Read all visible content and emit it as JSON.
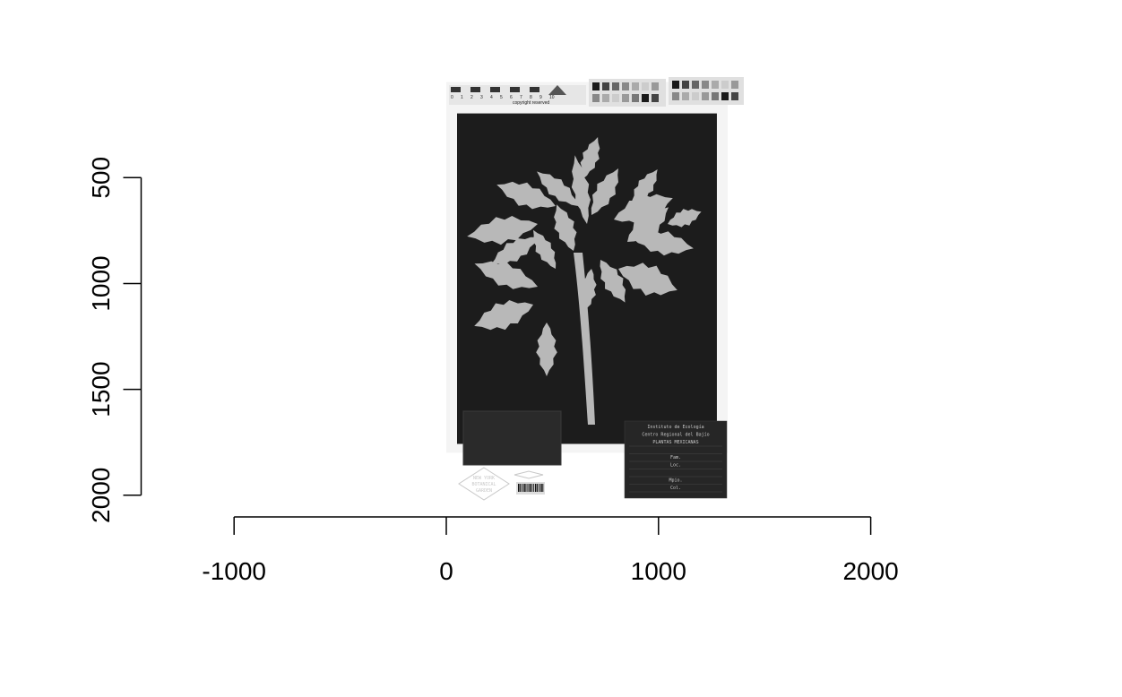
{
  "chart_data": {
    "type": "image",
    "title": "",
    "xlabel": "",
    "ylabel": "",
    "xlim": [
      -1000,
      2000
    ],
    "ylim": [
      2000,
      500
    ],
    "y_reversed": true,
    "x_ticks": [
      "-1000",
      "0",
      "1000",
      "2000"
    ],
    "y_ticks": [
      "500",
      "1000",
      "1500",
      "2000"
    ],
    "x_tick_values": [
      -1000,
      0,
      1000,
      2000
    ],
    "y_tick_values": [
      500,
      1000,
      1500,
      2000
    ],
    "grid": false,
    "legend": "none",
    "image": {
      "subject": "herbarium specimen",
      "colors": {
        "sheet": "#1c1c1c",
        "plant": "#b8b8b8",
        "background": "#ffffff",
        "label": "#262626"
      },
      "extent_x": [
        0,
        1330
      ],
      "extent_y": [
        1800,
        150
      ]
    }
  },
  "specimen": {
    "ruler_text": "copyright reserved",
    "ruler_numbers": [
      "0",
      "1",
      "2",
      "3",
      "4",
      "5",
      "6",
      "7",
      "8",
      "9",
      "10"
    ],
    "stamp_lines": [
      "NEW YORK",
      "BOTANICAL",
      "GARDEN"
    ],
    "barcode": "00000000",
    "label_lines": [
      "Instituto de Ecología",
      "Centro Regional del Bajío",
      "PLANTAS MEXICANAS",
      "",
      "Fam.",
      "Loc.",
      "",
      "Mpio.",
      "Col."
    ]
  }
}
